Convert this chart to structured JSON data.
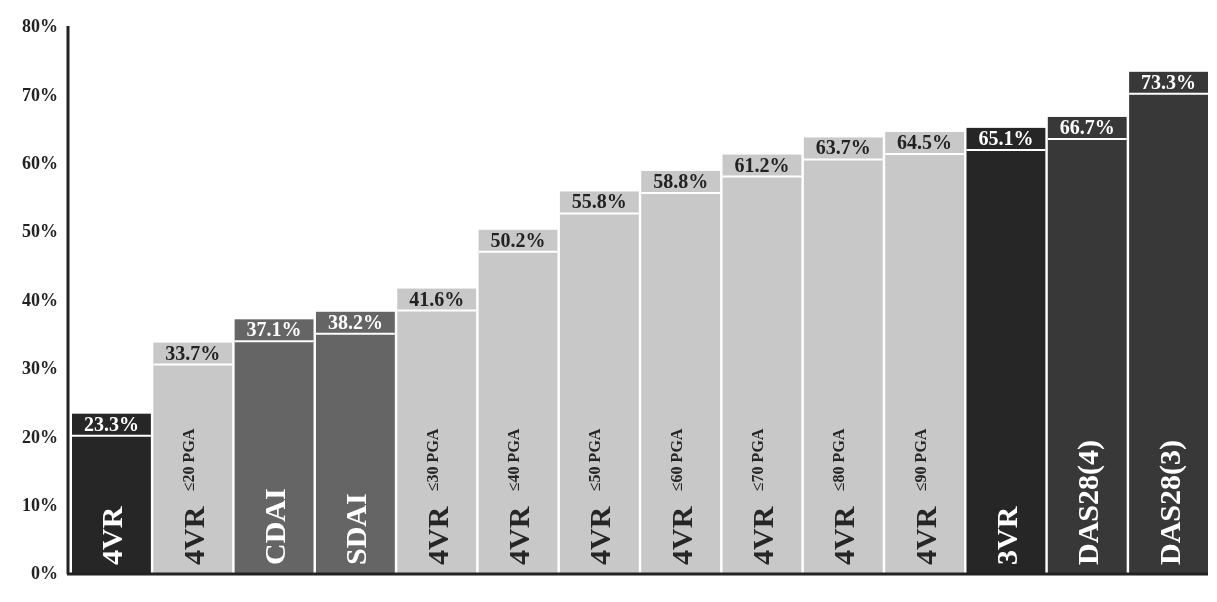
{
  "chart_data": {
    "type": "bar",
    "categories": [
      "4VR",
      "4VR $^{≤20 PGA}$",
      "CDAI",
      "SDAI",
      "4VR $^{≤30 PGA}$",
      "4VR $^{≤40 PGA}$",
      "4VR $^{≤50 PGA}$",
      "4VR $^{≤60 PGA}$",
      "4VR $^{≤70 PGA}$",
      "4VR $^{≤80 PGA}$",
      "4VR $^{≤90 PGA}$",
      "3VR",
      "DAS28(4)",
      "DAS28(3)"
    ],
    "values": [
      23.3,
      33.7,
      37.1,
      38.2,
      41.6,
      50.2,
      55.8,
      58.8,
      61.2,
      63.7,
      64.5,
      65.1,
      66.7,
      73.3
    ],
    "value_labels": [
      "23.3%",
      "33.7%",
      "37.1%",
      "38.2%",
      "41.6%",
      "50.2%",
      "55.8%",
      "58.8%",
      "61.2%",
      "63.7%",
      "64.5%",
      "65.1%",
      "66.7%",
      "73.3%"
    ],
    "colors": [
      "#262626",
      "#c8c8c8",
      "#656565",
      "#656565",
      "#c8c8c8",
      "#c8c8c8",
      "#c8c8c8",
      "#c8c8c8",
      "#c8c8c8",
      "#c8c8c8",
      "#c8c8c8",
      "#262626",
      "#383838",
      "#383838"
    ],
    "ylim": [
      0,
      80
    ],
    "yticks": [
      {
        "value": 0,
        "label": "0%"
      },
      {
        "value": 10,
        "label": "10%"
      },
      {
        "value": 20,
        "label": "20%"
      },
      {
        "value": 30,
        "label": "30%"
      },
      {
        "value": 40,
        "label": "40%"
      },
      {
        "value": 50,
        "label": "50%"
      },
      {
        "value": 60,
        "label": "60%"
      },
      {
        "value": 70,
        "label": "70%"
      },
      {
        "value": 80,
        "label": "80%"
      }
    ],
    "grid": false
  }
}
